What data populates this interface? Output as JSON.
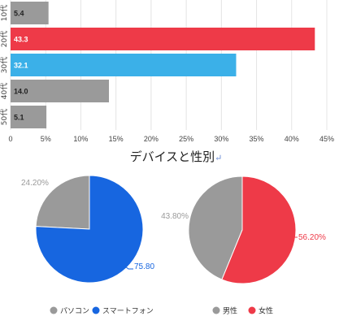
{
  "colors": {
    "gray": "#9a9a9a",
    "red": "#ee3a48",
    "blue": "#3bb0e8",
    "pie_blue": "#1766e0",
    "pie_gray": "#9a9a9a",
    "pie_red": "#ee3a48",
    "grid": "#e4e4e4",
    "axis_text": "#444444"
  },
  "chart_data": [
    {
      "type": "bar",
      "orientation": "horizontal",
      "categories": [
        "10代",
        "20代",
        "30代",
        "40代",
        "50代"
      ],
      "values": [
        5.4,
        43.3,
        32.1,
        14.0,
        5.1
      ],
      "value_labels": [
        "5.4",
        "43.3",
        "32.1",
        "14.0",
        "5.1"
      ],
      "bar_colors": [
        "#9a9a9a",
        "#ee3a48",
        "#3bb0e8",
        "#9a9a9a",
        "#9a9a9a"
      ],
      "xlim": [
        0,
        45
      ],
      "xticks": [
        0,
        5,
        10,
        15,
        20,
        25,
        30,
        35,
        40,
        45
      ],
      "xtick_labels": [
        "0",
        "5%",
        "10%",
        "15%",
        "20%",
        "25%",
        "30%",
        "35%",
        "40%",
        "45%"
      ],
      "grid": true
    },
    {
      "type": "pie",
      "slices": [
        {
          "label": "パソコン",
          "value": 24.2,
          "value_label": "24.20%",
          "color": "#9a9a9a"
        },
        {
          "label": "スマートフォン",
          "value": 75.8,
          "value_label": "75.80",
          "color": "#1766e0"
        }
      ],
      "legend_placement": "bottom"
    },
    {
      "type": "pie",
      "slices": [
        {
          "label": "男性",
          "value": 43.8,
          "value_label": "43.80%",
          "color": "#9a9a9a"
        },
        {
          "label": "女性",
          "value": 56.2,
          "value_label": "56.20%",
          "color": "#ee3a48"
        }
      ],
      "legend_placement": "bottom"
    }
  ],
  "middle_title": "デバイスと性別",
  "middle_title_mark": "↵"
}
